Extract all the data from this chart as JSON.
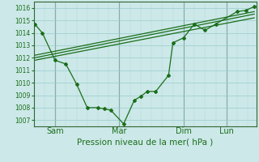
{
  "background_color": "#cce8e8",
  "grid_color": "#99cccc",
  "line_color": "#1a6e1a",
  "spine_color": "#336633",
  "title": "Pression niveau de la mer( hPa )",
  "ylim": [
    1006.5,
    1016.5
  ],
  "yticks": [
    1007,
    1008,
    1009,
    1010,
    1011,
    1012,
    1013,
    1014,
    1015,
    1016
  ],
  "x_tick_labels": [
    "Sam",
    "Mar",
    "Dim",
    "Lun"
  ],
  "x_tick_positions": [
    1,
    4,
    7,
    9
  ],
  "xlim": [
    0,
    10.4
  ],
  "series1_x": [
    0.05,
    0.4,
    1.0,
    1.5,
    2.0,
    2.5,
    3.0,
    3.3,
    3.6,
    4.2,
    4.7,
    5.0,
    5.3,
    5.7,
    6.3,
    6.5,
    7.0,
    7.5,
    8.0,
    8.5,
    9.5,
    9.9,
    10.3
  ],
  "series1_y": [
    1014.7,
    1014.0,
    1011.8,
    1011.5,
    1009.9,
    1008.0,
    1008.0,
    1007.9,
    1007.8,
    1006.7,
    1008.6,
    1008.9,
    1009.3,
    1009.3,
    1010.6,
    1013.2,
    1013.6,
    1014.7,
    1014.2,
    1014.7,
    1015.7,
    1015.8,
    1016.1
  ],
  "series2_x": [
    0.05,
    10.3
  ],
  "series2_y": [
    1012.0,
    1015.5
  ],
  "series3_x": [
    0.05,
    10.3
  ],
  "series3_y": [
    1012.2,
    1015.7
  ],
  "series4_x": [
    0.05,
    10.3
  ],
  "series4_y": [
    1011.8,
    1015.2
  ],
  "vline_x": [
    1,
    4,
    7,
    9
  ],
  "vline_color": "#556b55",
  "minor_grid_color": "#b8d8d8",
  "title_fontsize": 7.5,
  "ytick_fontsize": 5.5,
  "xtick_fontsize": 7.0
}
